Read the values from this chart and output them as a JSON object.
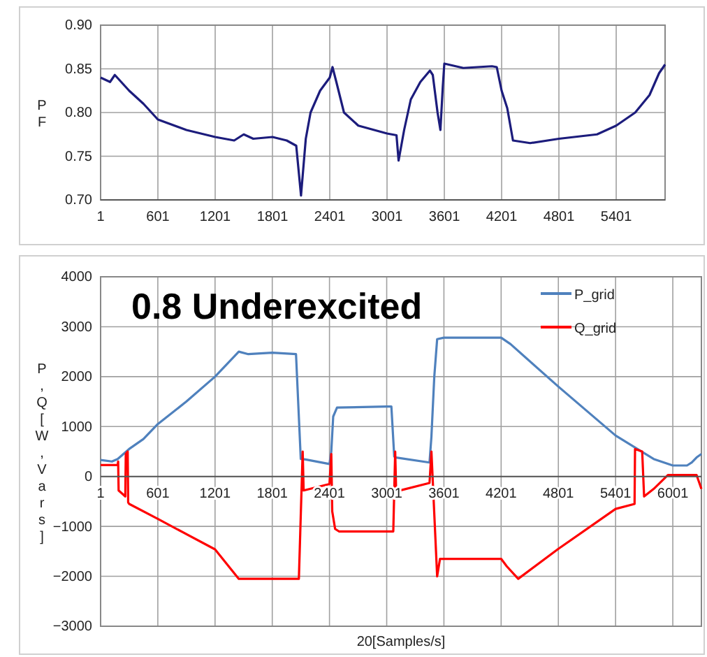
{
  "chart_data": [
    {
      "type": "line",
      "ylabel": "PF",
      "xlim": [
        1,
        5913
      ],
      "ylim": [
        0.7,
        0.9
      ],
      "xticks": [
        1,
        601,
        1201,
        1801,
        2401,
        3001,
        3601,
        4201,
        4801,
        5401
      ],
      "yticks": [
        {
          "value": 0.7,
          "label": "0.70"
        },
        {
          "value": 0.75,
          "label": "0.75"
        },
        {
          "value": 0.8,
          "label": "0.80"
        },
        {
          "value": 0.85,
          "label": "0.85"
        },
        {
          "value": 0.9,
          "label": "0.90"
        }
      ],
      "grid": true,
      "legend": false,
      "series": [
        {
          "color": "#1c1c7c",
          "x": [
            1,
            100,
            150,
            300,
            450,
            601,
            900,
            1201,
            1400,
            1500,
            1600,
            1801,
            1950,
            2050,
            2100,
            2150,
            2200,
            2300,
            2401,
            2430,
            2470,
            2550,
            2700,
            3001,
            3100,
            3122,
            3180,
            3250,
            3350,
            3450,
            3480,
            3530,
            3560,
            3585,
            3601,
            3800,
            4100,
            4150,
            4201,
            4260,
            4320,
            4500,
            4801,
            5200,
            5401,
            5600,
            5750,
            5850,
            5913
          ],
          "values": [
            0.84,
            0.835,
            0.843,
            0.825,
            0.81,
            0.792,
            0.78,
            0.772,
            0.768,
            0.775,
            0.77,
            0.772,
            0.768,
            0.762,
            0.705,
            0.77,
            0.8,
            0.825,
            0.84,
            0.852,
            0.835,
            0.8,
            0.785,
            0.776,
            0.774,
            0.745,
            0.78,
            0.815,
            0.835,
            0.848,
            0.843,
            0.8,
            0.78,
            0.83,
            0.856,
            0.851,
            0.853,
            0.852,
            0.825,
            0.805,
            0.768,
            0.765,
            0.77,
            0.775,
            0.785,
            0.8,
            0.82,
            0.845,
            0.855
          ]
        }
      ]
    },
    {
      "type": "line",
      "xlabel": "20[Samples/s]",
      "ylabel": "P,Q[W,Vars]",
      "annotations": [
        "0.8 Underexcited"
      ],
      "xlim": [
        1,
        6301
      ],
      "ylim": [
        -3000,
        4000
      ],
      "xticks": [
        1,
        601,
        1201,
        1801,
        2401,
        3001,
        3601,
        4201,
        4801,
        5401,
        6001
      ],
      "yticks": [
        {
          "value": -3000,
          "label": "−3000"
        },
        {
          "value": -2000,
          "label": "−2000"
        },
        {
          "value": -1000,
          "label": "−1000"
        },
        0,
        1000,
        2000,
        3000,
        4000
      ],
      "grid": true,
      "legend": "top right",
      "series": [
        {
          "name": "P_grid",
          "color": "#4f81bd",
          "x": [
            1,
            120,
            180,
            300,
            450,
            601,
            900,
            1201,
            1450,
            1550,
            1801,
            2050,
            2100,
            2150,
            2401,
            2420,
            2440,
            2480,
            3001,
            3050,
            3080,
            3100,
            3450,
            3470,
            3500,
            3530,
            3601,
            4201,
            4300,
            4801,
            5401,
            5800,
            6001,
            6150,
            6200,
            6250,
            6301
          ],
          "values": [
            330,
            300,
            350,
            550,
            750,
            1050,
            1500,
            2000,
            2500,
            2450,
            2480,
            2450,
            350,
            340,
            250,
            500,
            1200,
            1380,
            1400,
            1400,
            400,
            380,
            280,
            800,
            2000,
            2750,
            2780,
            2780,
            2650,
            1800,
            820,
            350,
            220,
            220,
            280,
            380,
            450
          ]
        },
        {
          "name": "Q_grid",
          "color": "#ff0000",
          "x": [
            1,
            180,
            185,
            190,
            260,
            265,
            285,
            290,
            301,
            601,
            1201,
            1450,
            1801,
            2080,
            2120,
            2130,
            2401,
            2420,
            2430,
            2460,
            2500,
            3001,
            3070,
            3090,
            3100,
            3450,
            3470,
            3530,
            3560,
            4201,
            4260,
            4380,
            4801,
            5401,
            5600,
            5605,
            5680,
            5700,
            5800,
            5950,
            6001,
            6250,
            6301
          ],
          "values": [
            230,
            230,
            300,
            -280,
            -400,
            450,
            500,
            -520,
            -550,
            -850,
            -1460,
            -2050,
            -2050,
            -2050,
            500,
            -280,
            -150,
            450,
            -700,
            -1050,
            -1100,
            -1100,
            -1100,
            500,
            -300,
            -130,
            500,
            -2000,
            -1650,
            -1650,
            -1800,
            -2050,
            -1450,
            -650,
            -550,
            550,
            500,
            -400,
            -250,
            30,
            30,
            30,
            -250
          ]
        }
      ]
    }
  ]
}
